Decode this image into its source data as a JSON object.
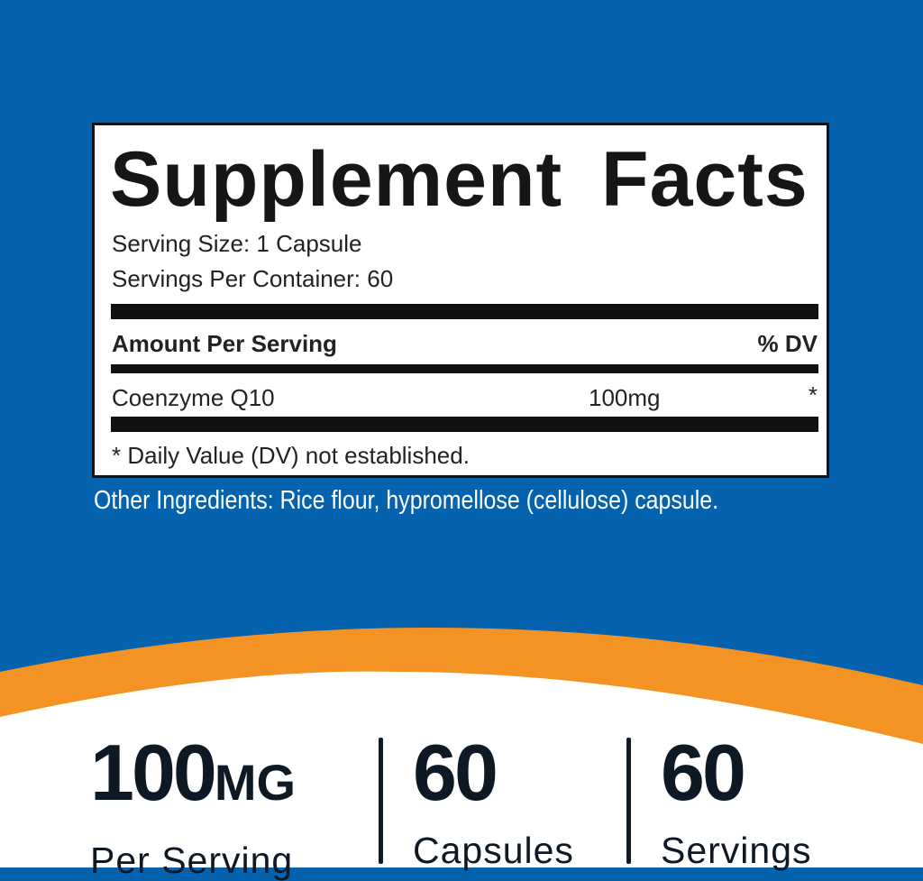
{
  "colors": {
    "background": "#0462ae",
    "accent": "#f39324",
    "text_dark": "#0e1926"
  },
  "facts": {
    "title": "Supplement Facts",
    "serving_size": "Serving Size: 1 Capsule",
    "servings_per_container": "Servings Per Container: 60",
    "amount_header": "Amount Per Serving",
    "dv_header": "% DV",
    "rows": [
      {
        "name": "Coenzyme Q10",
        "amount": "100mg",
        "dv": "*"
      }
    ],
    "footnote": "* Daily Value (DV) not established."
  },
  "other_ingredients": "Other Ingredients: Rice flour, hypromellose (cellulose) capsule.",
  "stats": [
    {
      "value": "100",
      "unit": "MG",
      "label": "Per Serving"
    },
    {
      "value": "60",
      "unit": "",
      "label": "Capsules"
    },
    {
      "value": "60",
      "unit": "",
      "label": "Servings"
    }
  ]
}
